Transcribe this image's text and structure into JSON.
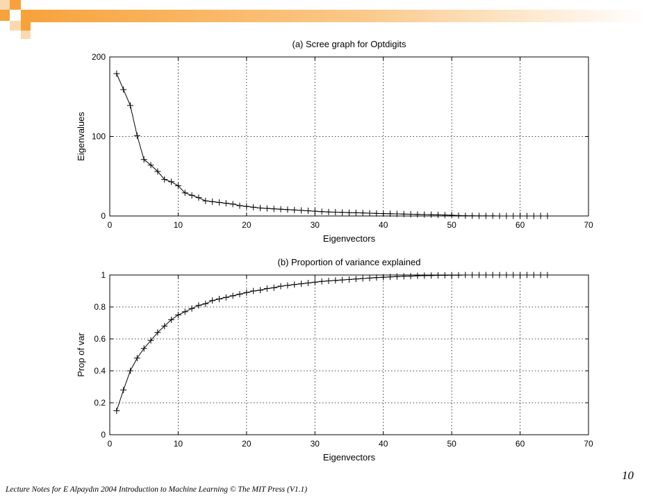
{
  "slide": {
    "page_number": "10",
    "footer": "Lecture Notes for E Alpaydın 2004 Introduction to Machine Learning © The MIT Press (V1.1)",
    "accent_color": "#f7a23a",
    "accent_light_color": "#fbd9b0"
  },
  "chart_data": [
    {
      "type": "line",
      "title": "(a) Scree graph for Optdigits",
      "xlabel": "Eigenvectors",
      "ylabel": "Eigenvalues",
      "xlim": [
        0,
        70
      ],
      "ylim": [
        0,
        200
      ],
      "xticks": [
        "0",
        "10",
        "20",
        "30",
        "40",
        "50",
        "60",
        "70"
      ],
      "yticks": [
        "0",
        "100",
        "200"
      ],
      "grid": true,
      "marker": "+",
      "x": [
        1,
        2,
        3,
        4,
        5,
        6,
        7,
        8,
        9,
        10,
        11,
        12,
        13,
        14,
        15,
        16,
        17,
        18,
        19,
        20,
        21,
        22,
        23,
        24,
        25,
        26,
        27,
        28,
        29,
        30,
        31,
        32,
        33,
        34,
        35,
        36,
        37,
        38,
        39,
        40,
        41,
        42,
        43,
        44,
        45,
        46,
        47,
        48,
        49,
        50,
        51,
        52,
        53,
        54,
        55,
        56,
        57,
        58,
        59,
        60,
        61,
        62,
        63,
        64
      ],
      "values": [
        179,
        159,
        139,
        101,
        71,
        64,
        56,
        46,
        43,
        38,
        29,
        26,
        23,
        19,
        18,
        17,
        16,
        15,
        13,
        12,
        11,
        10,
        9.5,
        9,
        8.5,
        8,
        7.5,
        7,
        6.5,
        6,
        5.5,
        5,
        4.8,
        4.5,
        4.2,
        4,
        3.8,
        3.5,
        3.2,
        3,
        2.8,
        2.6,
        2.4,
        2.2,
        2,
        1.8,
        1.6,
        1.4,
        1.2,
        1,
        0.5,
        0.3,
        0.2,
        0.1,
        0.1,
        0.1,
        0,
        0,
        0,
        0,
        0,
        0,
        0,
        0
      ]
    },
    {
      "type": "line",
      "title": "(b) Proportion of variance explained",
      "xlabel": "Eigenvectors",
      "ylabel": "Prop of var",
      "xlim": [
        0,
        70
      ],
      "ylim": [
        0,
        1
      ],
      "xticks": [
        "0",
        "10",
        "20",
        "30",
        "40",
        "50",
        "60",
        "70"
      ],
      "yticks": [
        "0",
        "0.2",
        "0.4",
        "0.6",
        "0.8",
        "1"
      ],
      "grid": true,
      "marker": "+",
      "x": [
        1,
        2,
        3,
        4,
        5,
        6,
        7,
        8,
        9,
        10,
        11,
        12,
        13,
        14,
        15,
        16,
        17,
        18,
        19,
        20,
        21,
        22,
        23,
        24,
        25,
        26,
        27,
        28,
        29,
        30,
        31,
        32,
        33,
        34,
        35,
        36,
        37,
        38,
        39,
        40,
        41,
        42,
        43,
        44,
        45,
        46,
        47,
        48,
        49,
        50,
        51,
        52,
        53,
        54,
        55,
        56,
        57,
        58,
        59,
        60,
        61,
        62,
        63,
        64
      ],
      "values": [
        0.15,
        0.28,
        0.4,
        0.48,
        0.54,
        0.59,
        0.64,
        0.68,
        0.72,
        0.75,
        0.77,
        0.79,
        0.81,
        0.82,
        0.84,
        0.85,
        0.86,
        0.87,
        0.88,
        0.89,
        0.9,
        0.905,
        0.915,
        0.92,
        0.93,
        0.935,
        0.94,
        0.945,
        0.95,
        0.955,
        0.96,
        0.963,
        0.966,
        0.969,
        0.972,
        0.975,
        0.978,
        0.981,
        0.984,
        0.986,
        0.988,
        0.99,
        0.992,
        0.993,
        0.995,
        0.996,
        0.997,
        0.998,
        0.998,
        0.999,
        0.999,
        1,
        1,
        1,
        1,
        1,
        1,
        1,
        1,
        1,
        1,
        1,
        1,
        1
      ]
    }
  ]
}
